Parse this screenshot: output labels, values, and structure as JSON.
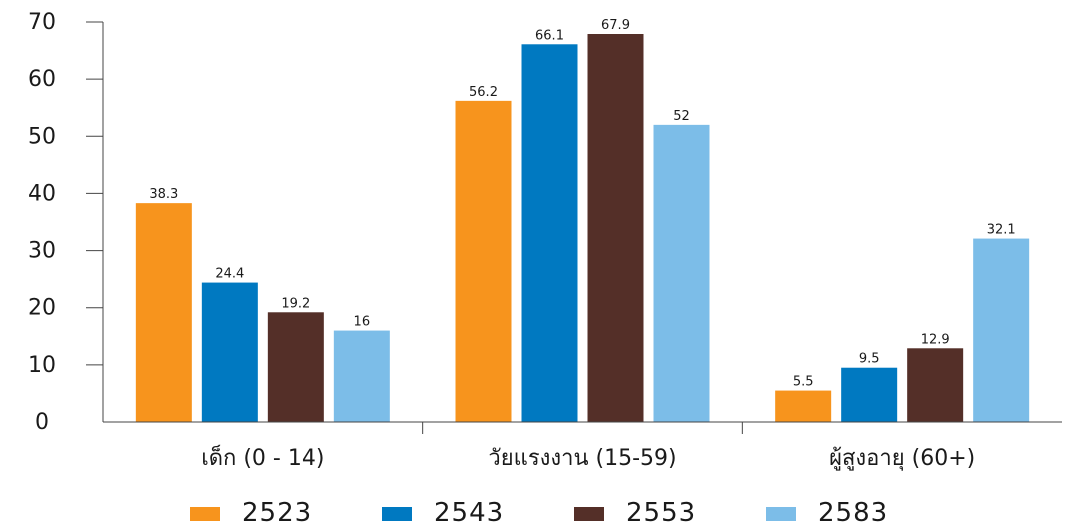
{
  "chart_data": {
    "type": "bar",
    "categories": [
      "เด็ก (0 - 14)",
      "วัยแรงงาน (15-59)",
      "ผู้สูงอายุ (60+)"
    ],
    "series": [
      {
        "name": "2523",
        "color": "#f7941d",
        "values": [
          38.3,
          56.2,
          5.5
        ]
      },
      {
        "name": "2543",
        "color": "#0079c1",
        "values": [
          24.4,
          66.1,
          9.5
        ]
      },
      {
        "name": "2553",
        "color": "#542f28",
        "values": [
          19.2,
          67.9,
          12.9
        ]
      },
      {
        "name": "2583",
        "color": "#7cbde8",
        "values": [
          16,
          52,
          32.1
        ]
      }
    ],
    "ylim": [
      0,
      70
    ],
    "yticks": [
      "0",
      "10",
      "20",
      "30",
      "40",
      "50",
      "60",
      "70"
    ],
    "legend_position": "bottom",
    "grid": false
  }
}
